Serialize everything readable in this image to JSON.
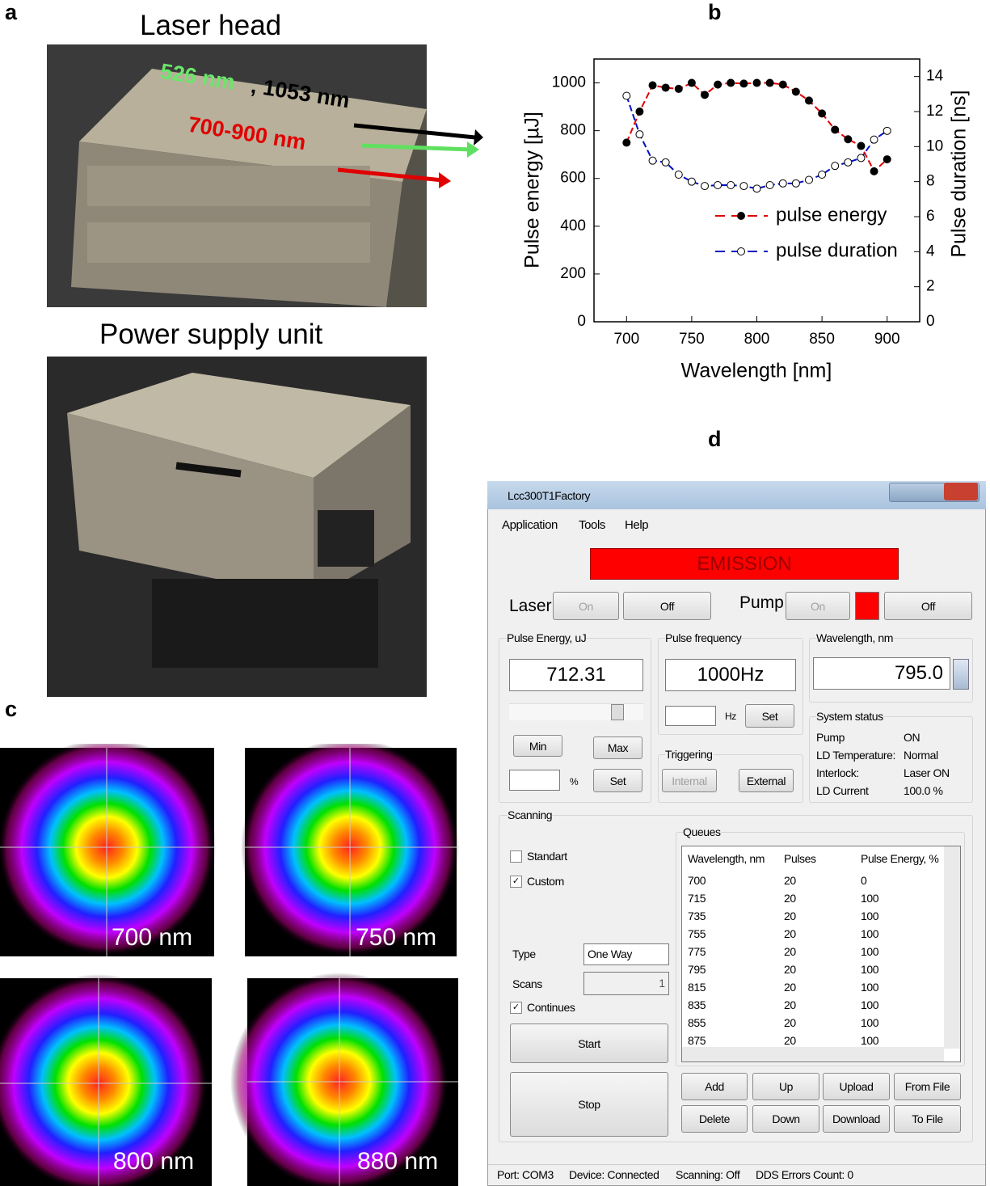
{
  "panel_labels": [
    "a",
    "b",
    "c",
    "d"
  ],
  "panel_a": {
    "laser_head": "Laser head",
    "label_526": "526 nm",
    "label_1053": ", 1053 nm",
    "label_700_900": "700-900 nm",
    "power_supply": "Power supply unit"
  },
  "chart_data": {
    "type": "line",
    "xlabel": "Wavelength [nm]",
    "ylabel": "Pulse energy [µJ]",
    "y2label": "Pulse duration [ns]",
    "x": [
      700,
      710,
      720,
      730,
      740,
      750,
      760,
      770,
      780,
      790,
      800,
      810,
      820,
      830,
      840,
      850,
      860,
      870,
      880,
      890,
      900
    ],
    "series": [
      {
        "name": "pulse energy",
        "color": "#e00000",
        "markers": "filled",
        "values": [
          750,
          880,
          990,
          980,
          975,
          1000,
          950,
          993,
          1000,
          997,
          1000,
          1000,
          993,
          963,
          926,
          872,
          804,
          764,
          736,
          630,
          680
        ]
      },
      {
        "name": "pulse duration",
        "color": "#0010c0",
        "markers": "open",
        "axis": "y2",
        "values": [
          12.9,
          10.7,
          9.2,
          9.1,
          8.4,
          8.0,
          7.75,
          7.8,
          7.8,
          7.75,
          7.6,
          7.8,
          7.9,
          7.9,
          8.1,
          8.4,
          8.9,
          9.1,
          9.35,
          10.4,
          10.9
        ]
      }
    ],
    "xlim": [
      675,
      925
    ],
    "xticks": [
      700,
      750,
      800,
      850,
      900
    ],
    "ylim": [
      0,
      1100
    ],
    "yticks": [
      0,
      200,
      400,
      600,
      800,
      1000
    ],
    "y2lim": [
      0,
      15
    ],
    "y2ticks": [
      0,
      2,
      4,
      6,
      8,
      10,
      12,
      14
    ]
  },
  "panel_c": {
    "captions": [
      "700 nm",
      "750 nm",
      "800 nm",
      "880 nm"
    ]
  },
  "panel_d": {
    "window_title": "Lcc300T1Factory",
    "menu": [
      "Application",
      "Tools",
      "Help"
    ],
    "emission": "EMISSION",
    "laser": {
      "label": "Laser",
      "on": "On",
      "off": "Off"
    },
    "pump": {
      "label": "Pump",
      "on": "On",
      "off": "Off"
    },
    "pulse_energy": {
      "title": "Pulse Energy, uJ",
      "value": "712.31",
      "min": "Min",
      "max": "Max",
      "unit": "%",
      "set": "Set"
    },
    "pulse_frequency": {
      "title": "Pulse frequency",
      "value": "1000Hz",
      "unit": "Hz",
      "set": "Set"
    },
    "triggering": {
      "title": "Triggering",
      "internal": "Internal",
      "external": "External"
    },
    "wavelength": {
      "title": "Wavelength, nm",
      "value": "795.0"
    },
    "system_status": {
      "title": "System status",
      "rows": [
        [
          "Pump",
          "ON"
        ],
        [
          "LD Temperature:",
          "Normal"
        ],
        [
          "Interlock:",
          "Laser ON"
        ],
        [
          "LD Current",
          "100.0 %"
        ]
      ]
    },
    "scanning": {
      "title": "Scanning",
      "standart": "Standart",
      "custom": "Custom",
      "type_label": "Type",
      "type_value": "One Way",
      "scans_label": "Scans",
      "scans_value": "1",
      "continues": "Continues",
      "start": "Start",
      "stop": "Stop"
    },
    "queues": {
      "title": "Queues",
      "columns": [
        "Wavelength, nm",
        "Pulses",
        "Pulse Energy, %"
      ],
      "rows": [
        [
          "700",
          "20",
          "0"
        ],
        [
          "715",
          "20",
          "100"
        ],
        [
          "735",
          "20",
          "100"
        ],
        [
          "755",
          "20",
          "100"
        ],
        [
          "775",
          "20",
          "100"
        ],
        [
          "795",
          "20",
          "100"
        ],
        [
          "815",
          "20",
          "100"
        ],
        [
          "835",
          "20",
          "100"
        ],
        [
          "855",
          "20",
          "100"
        ],
        [
          "875",
          "20",
          "100"
        ]
      ],
      "buttons": [
        "Add",
        "Up",
        "Upload",
        "From File",
        "Delete",
        "Down",
        "Download",
        "To File"
      ]
    },
    "status_bar": [
      "Port: COM3",
      "Device: Connected",
      "Scanning: Off",
      "DDS Errors Count: 0"
    ]
  }
}
